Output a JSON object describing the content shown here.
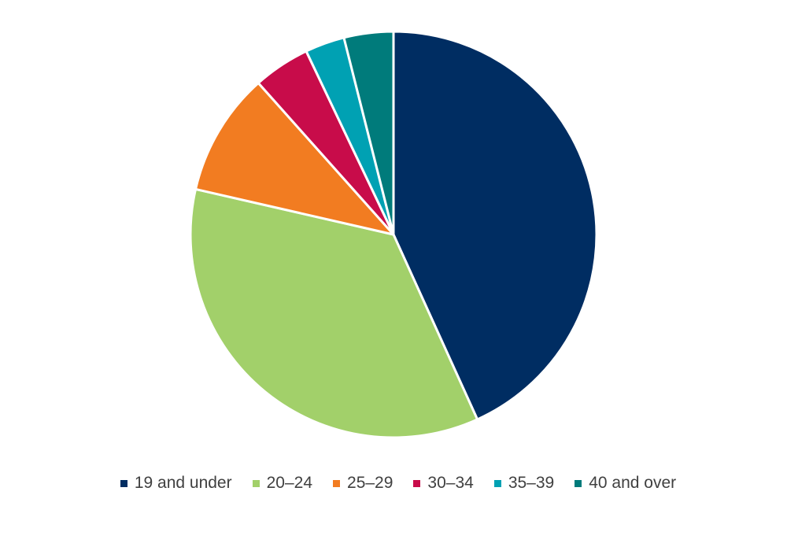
{
  "chart_data": {
    "type": "pie",
    "title": "",
    "categories": [
      "19 and under",
      "20–24",
      "25–29",
      "30–34",
      "35–39",
      "40 and over"
    ],
    "values": [
      44,
      36,
      10,
      4.6,
      3.2,
      4
    ],
    "unit": "%",
    "colors": [
      "#002D62",
      "#A2D06A",
      "#F27C21",
      "#C80C4A",
      "#00A1B3",
      "#007B7B"
    ],
    "start_angle_deg": 0,
    "direction": "clockwise",
    "legend_position": "bottom"
  }
}
